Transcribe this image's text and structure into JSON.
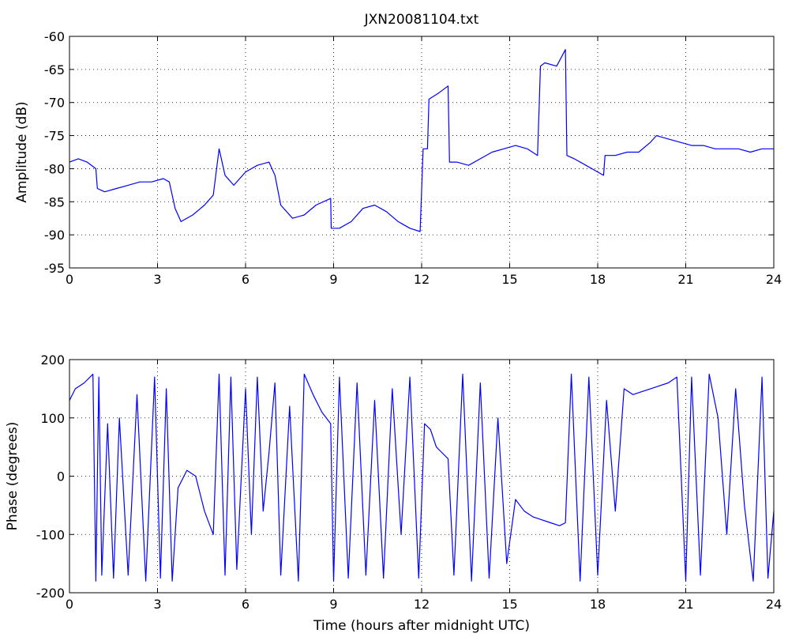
{
  "chart_data": [
    {
      "type": "line",
      "title": "JXN20081104.txt",
      "xlabel": "",
      "ylabel": "Amplitude (dB)",
      "xlim": [
        0,
        24
      ],
      "ylim": [
        -95,
        -60
      ],
      "xticks": [
        "0",
        "3",
        "6",
        "9",
        "12",
        "15",
        "18",
        "21",
        "24"
      ],
      "yticks": [
        "-95",
        "-90",
        "-85",
        "-80",
        "-75",
        "-70",
        "-65",
        "-60"
      ],
      "grid": true,
      "color": "#0000ff",
      "series": [
        {
          "name": "",
          "x": [
            0,
            0.3,
            0.6,
            0.9,
            0.95,
            1.2,
            1.6,
            2.0,
            2.4,
            2.8,
            3.2,
            3.4,
            3.6,
            3.8,
            4.2,
            4.6,
            4.9,
            5.1,
            5.3,
            5.6,
            6.0,
            6.4,
            6.8,
            7.0,
            7.2,
            7.6,
            8.0,
            8.4,
            8.9,
            8.92,
            9.2,
            9.6,
            10.0,
            10.4,
            10.8,
            11.2,
            11.6,
            11.95,
            12.05,
            12.2,
            12.25,
            12.6,
            12.9,
            12.95,
            13.2,
            13.6,
            14.0,
            14.4,
            14.8,
            15.2,
            15.6,
            15.95,
            16.05,
            16.2,
            16.6,
            16.9,
            16.95,
            17.2,
            17.6,
            18.0,
            18.2,
            18.25,
            18.6,
            19.0,
            19.4,
            19.8,
            20.0,
            20.4,
            20.8,
            21.2,
            21.6,
            22.0,
            22.4,
            22.8,
            23.2,
            23.6,
            24.0
          ],
          "y": [
            -79,
            -78.5,
            -79,
            -80,
            -83,
            -83.5,
            -83,
            -82.5,
            -82,
            -82,
            -81.5,
            -82,
            -86,
            -88,
            -87,
            -85.5,
            -84,
            -77,
            -81,
            -82.5,
            -80.5,
            -79.5,
            -79,
            -81,
            -85.5,
            -87.5,
            -87,
            -85.5,
            -84.5,
            -89,
            -89,
            -88,
            -86,
            -85.5,
            -86.5,
            -88,
            -89,
            -89.5,
            -77,
            -77,
            -69.5,
            -68.5,
            -67.5,
            -79,
            -79,
            -79.5,
            -78.5,
            -77.5,
            -77,
            -76.5,
            -77,
            -78,
            -64.5,
            -64,
            -64.5,
            -62,
            -78,
            -78.5,
            -79.5,
            -80.5,
            -81,
            -78,
            -78,
            -77.5,
            -77.5,
            -76,
            -75,
            -75.5,
            -76,
            -76.5,
            -76.5,
            -77,
            -77,
            -77,
            -77.5,
            -77,
            -77
          ]
        }
      ]
    },
    {
      "type": "line",
      "title": "",
      "xlabel": "Time (hours after midnight UTC)",
      "ylabel": "Phase (degrees)",
      "xlim": [
        0,
        24
      ],
      "ylim": [
        -200,
        200
      ],
      "xticks": [
        "0",
        "3",
        "6",
        "9",
        "12",
        "15",
        "18",
        "21",
        "24"
      ],
      "yticks": [
        "-200",
        "-100",
        "0",
        "100",
        "200"
      ],
      "grid": true,
      "color": "#0000ff",
      "series": [
        {
          "name": "",
          "x": [
            0,
            0.2,
            0.5,
            0.8,
            0.9,
            1.0,
            1.1,
            1.3,
            1.5,
            1.7,
            2.0,
            2.3,
            2.6,
            2.9,
            3.1,
            3.3,
            3.5,
            3.7,
            4.0,
            4.3,
            4.6,
            4.9,
            5.1,
            5.3,
            5.5,
            5.7,
            6.0,
            6.2,
            6.4,
            6.6,
            6.8,
            7.0,
            7.2,
            7.5,
            7.8,
            8.0,
            8.3,
            8.6,
            8.9,
            9.0,
            9.2,
            9.5,
            9.8,
            10.1,
            10.4,
            10.7,
            11.0,
            11.3,
            11.6,
            11.9,
            12.1,
            12.3,
            12.5,
            12.7,
            12.9,
            13.1,
            13.4,
            13.7,
            14.0,
            14.3,
            14.6,
            14.9,
            15.2,
            15.5,
            15.8,
            16.1,
            16.4,
            16.7,
            16.9,
            17.1,
            17.4,
            17.7,
            18.0,
            18.3,
            18.6,
            18.9,
            19.2,
            19.5,
            19.8,
            20.1,
            20.4,
            20.7,
            21.0,
            21.2,
            21.5,
            21.8,
            22.1,
            22.4,
            22.7,
            23.0,
            23.3,
            23.6,
            23.8,
            24.0
          ],
          "y": [
            130,
            150,
            160,
            175,
            -180,
            170,
            -170,
            90,
            -175,
            100,
            -170,
            140,
            -180,
            170,
            -175,
            150,
            -180,
            -20,
            10,
            0,
            -60,
            -100,
            175,
            -170,
            170,
            -160,
            150,
            -100,
            170,
            -60,
            40,
            160,
            -170,
            120,
            -180,
            175,
            140,
            110,
            90,
            -180,
            170,
            -175,
            160,
            -170,
            130,
            -175,
            150,
            -100,
            170,
            -175,
            90,
            80,
            50,
            40,
            30,
            -170,
            175,
            -180,
            160,
            -175,
            100,
            -150,
            -40,
            -60,
            -70,
            -75,
            -80,
            -85,
            -80,
            175,
            -180,
            170,
            -170,
            130,
            -60,
            150,
            140,
            145,
            150,
            155,
            160,
            170,
            -180,
            170,
            -170,
            175,
            100,
            -100,
            150,
            -50,
            -180,
            170,
            -175,
            -60
          ]
        }
      ]
    }
  ]
}
